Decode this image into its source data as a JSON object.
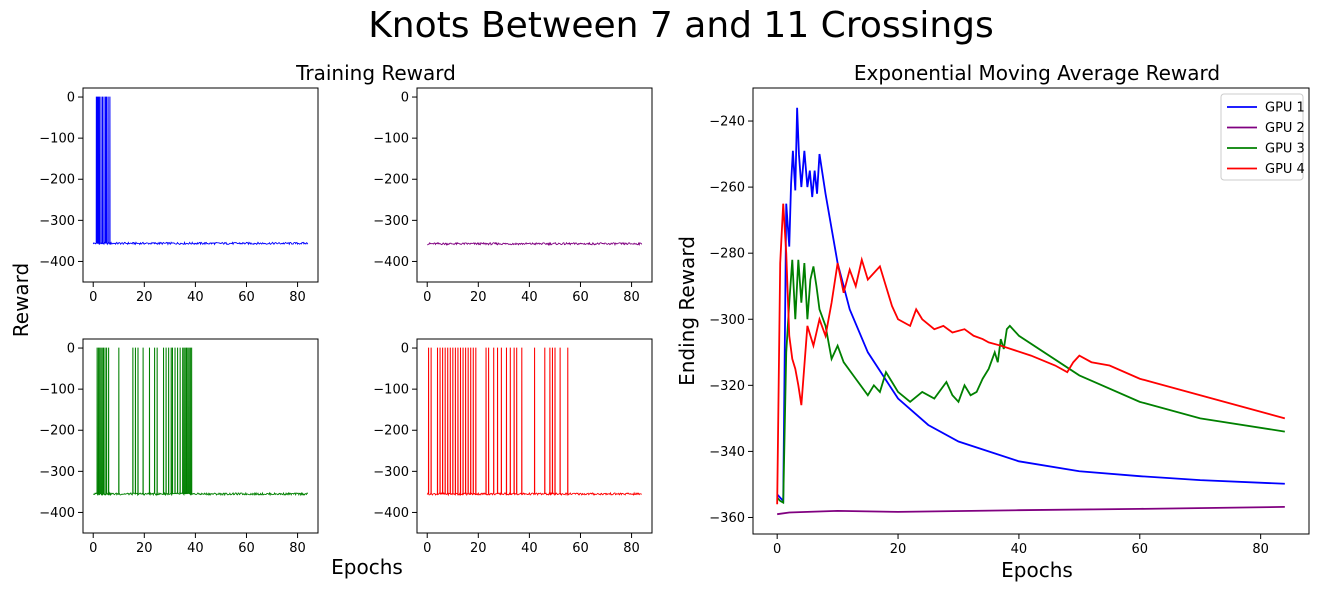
{
  "suptitle": "Knots Between 7 and 11 Crossings",
  "left_title": "Training Reward",
  "left_ylabel": "Reward",
  "left_xlabel": "Epochs",
  "right_title": "Exponential Moving Average Reward",
  "right_ylabel": "Ending Reward",
  "right_xlabel": "Epochs",
  "colors": {
    "GPU 1": "#0000ff",
    "GPU 2": "#800080",
    "GPU 3": "#008000",
    "GPU 4": "#ff0000"
  },
  "chart_data": [
    {
      "type": "line",
      "panel": "GPU 1 training reward",
      "xlim": [
        -4,
        88
      ],
      "ylim": [
        -450,
        22
      ],
      "xticks": [
        0,
        20,
        40,
        60,
        80
      ],
      "yticks": [
        0,
        -100,
        -200,
        -300,
        -400
      ],
      "baseline": -356,
      "spikes_to_zero_at_epochs": [
        1.2,
        1.6,
        2.0,
        2.4,
        3.0,
        3.6,
        4.2,
        4.8,
        5.2,
        5.8,
        6.5
      ],
      "x_end": 84
    },
    {
      "type": "line",
      "panel": "GPU 2 training reward",
      "xlim": [
        -4,
        88
      ],
      "ylim": [
        -450,
        22
      ],
      "xticks": [
        0,
        20,
        40,
        60,
        80
      ],
      "yticks": [
        0,
        -100,
        -200,
        -300,
        -400
      ],
      "baseline": -357,
      "spikes_to_zero_at_epochs": [],
      "x_end": 84
    },
    {
      "type": "line",
      "panel": "GPU 3 training reward",
      "xlim": [
        -4,
        88
      ],
      "ylim": [
        -450,
        22
      ],
      "xticks": [
        0,
        20,
        40,
        60,
        80
      ],
      "yticks": [
        0,
        -100,
        -200,
        -300,
        -400
      ],
      "baseline": -355,
      "spikes_to_zero_at_epochs": [
        1.5,
        2.0,
        2.5,
        3.0,
        3.5,
        4.0,
        4.6,
        5.2,
        6.0,
        10.0,
        15.5,
        16.5,
        17.5,
        19.5,
        22.0,
        24.0,
        25.0,
        27.5,
        28.5,
        29.5,
        30.5,
        31.0,
        32.0,
        33.0,
        34.0,
        35.0,
        35.5,
        36.0,
        36.5,
        37.0,
        37.5,
        38.0,
        38.5
      ],
      "x_end": 84
    },
    {
      "type": "line",
      "panel": "GPU 4 training reward",
      "xlim": [
        -4,
        88
      ],
      "ylim": [
        -450,
        22
      ],
      "xticks": [
        0,
        20,
        40,
        60,
        80
      ],
      "yticks": [
        0,
        -100,
        -200,
        -300,
        -400
      ],
      "baseline": -355,
      "spikes_to_zero_at_epochs": [
        0.5,
        1.5,
        4.0,
        5.0,
        6.0,
        7.0,
        8.0,
        9.0,
        10.0,
        11.0,
        12.0,
        13.0,
        14.0,
        15.0,
        16.0,
        17.0,
        18.0,
        19.0,
        23.0,
        24.0,
        26.0,
        27.5,
        29.0,
        31.0,
        32.5,
        34.0,
        35.0,
        37.0,
        42.0,
        46.0,
        48.0,
        49.0,
        50.0,
        52.0,
        55.0
      ],
      "x_end": 84
    },
    {
      "type": "line",
      "panel": "Exponential Moving Average Reward",
      "xlim": [
        -4,
        88
      ],
      "ylim": [
        -365,
        -230
      ],
      "xticks": [
        0,
        20,
        40,
        60,
        80
      ],
      "yticks": [
        -240,
        -260,
        -280,
        -300,
        -320,
        -340,
        -360
      ],
      "legend": "top-right",
      "series": [
        {
          "name": "GPU 1",
          "x": [
            0,
            1,
            1.5,
            2,
            2.3,
            2.6,
            3,
            3.3,
            3.6,
            4,
            4.5,
            5,
            5.4,
            5.8,
            6.2,
            6.6,
            7,
            8,
            10,
            12,
            15,
            20,
            25,
            30,
            40,
            50,
            60,
            70,
            84
          ],
          "y": [
            -353,
            -355,
            -265,
            -278,
            -259,
            -249,
            -261,
            -236,
            -250,
            -260,
            -249,
            -260,
            -255,
            -263,
            -255,
            -262,
            -250,
            -262,
            -283,
            -297,
            -310,
            -324,
            -332,
            -337,
            -343,
            -346,
            -347.5,
            -348.7,
            -349.8
          ]
        },
        {
          "name": "GPU 2",
          "x": [
            0,
            2,
            5,
            10,
            20,
            40,
            60,
            84
          ],
          "y": [
            -359,
            -358.5,
            -358.3,
            -358.0,
            -358.3,
            -357.8,
            -357.4,
            -356.8
          ]
        },
        {
          "name": "GPU 3",
          "x": [
            0,
            0.5,
            1.0,
            1.5,
            2.0,
            2.5,
            3.0,
            3.5,
            4.0,
            4.5,
            5.0,
            5.5,
            6.0,
            6.5,
            7.0,
            8,
            9,
            10,
            11,
            13,
            15,
            16,
            17,
            18,
            19,
            20,
            22,
            24,
            26,
            28,
            29,
            30,
            31,
            32,
            33,
            34,
            35,
            36,
            36.5,
            37,
            37.5,
            38,
            38.5,
            40,
            50,
            60,
            70,
            84
          ],
          "y": [
            -354,
            -355,
            -355.5,
            -310,
            -295,
            -282,
            -300,
            -282,
            -295,
            -283,
            -300,
            -288,
            -284,
            -290,
            -297,
            -302,
            -312,
            -308,
            -313,
            -318,
            -323,
            -320,
            -322,
            -316,
            -319,
            -322,
            -325,
            -322,
            -324,
            -319,
            -323,
            -325,
            -320,
            -323,
            -322,
            -318,
            -315,
            -310,
            -313,
            -306,
            -309,
            -303,
            -302,
            -305,
            -317,
            -325,
            -330,
            -334
          ]
        },
        {
          "name": "GPU 4",
          "x": [
            0,
            0.5,
            1.0,
            1.5,
            2.0,
            2.5,
            3,
            3.5,
            4,
            5,
            6,
            7,
            8,
            9,
            10,
            11,
            12,
            13,
            14,
            15,
            16,
            17,
            18,
            19,
            20,
            22,
            23,
            24,
            26,
            27.5,
            29,
            31,
            32.5,
            34,
            35,
            37,
            42,
            46,
            48,
            49,
            50,
            52,
            55,
            60,
            70,
            84
          ],
          "y": [
            -356,
            -283,
            -265,
            -280,
            -305,
            -312,
            -315,
            -320,
            -326,
            -302,
            -308,
            -300,
            -305,
            -295,
            -283,
            -292,
            -285,
            -290,
            -282,
            -288,
            -286,
            -284,
            -290,
            -296,
            -300,
            -302,
            -297,
            -300,
            -303,
            -302,
            -304,
            -303,
            -305,
            -306,
            -307,
            -308,
            -311,
            -314,
            -316,
            -313,
            -311,
            -313,
            -314,
            -318,
            -323,
            -330
          ]
        }
      ]
    }
  ]
}
